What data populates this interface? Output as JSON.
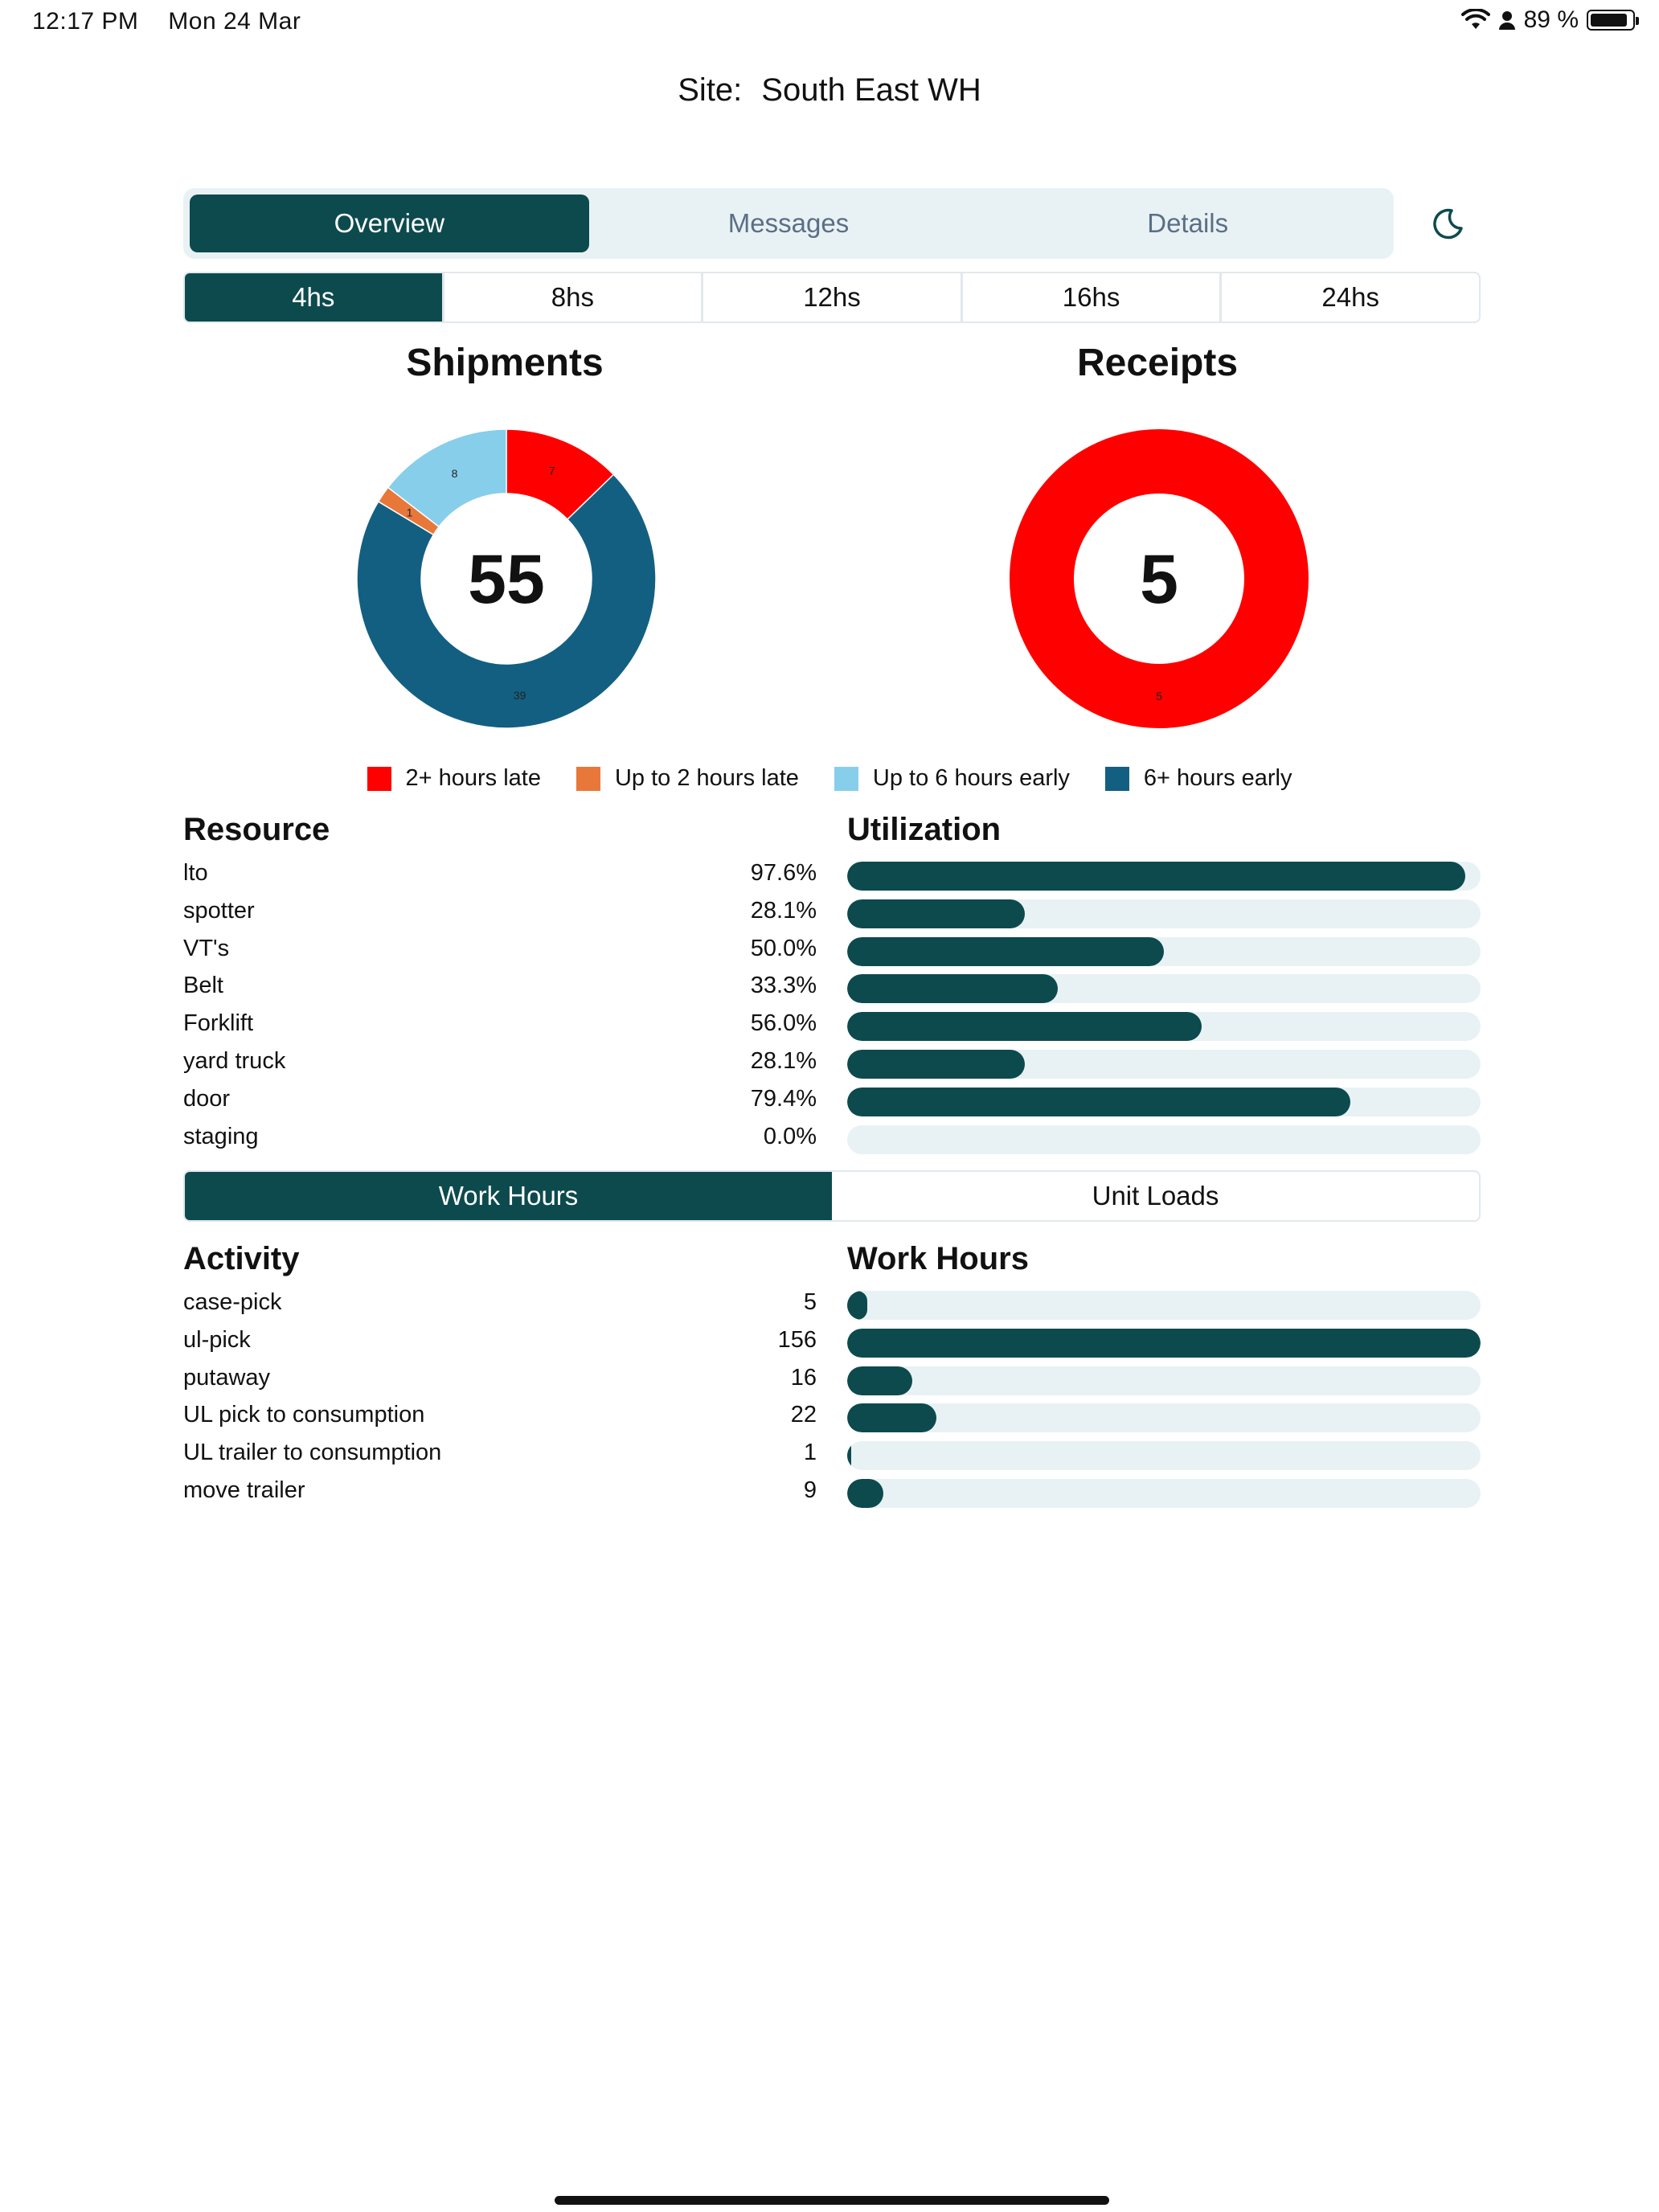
{
  "status_bar": {
    "time": "12:17 PM",
    "date": "Mon 24 Mar",
    "battery": "89 %",
    "battery_level": 0.89
  },
  "header": {
    "site_label": "Site:",
    "site_name": "South East WH"
  },
  "tabs": [
    {
      "label": "Overview",
      "active": true
    },
    {
      "label": "Messages",
      "active": false
    },
    {
      "label": "Details",
      "active": false
    }
  ],
  "theme_toggle_icon": "moon-icon",
  "time_filters": [
    {
      "label": "4hs",
      "active": true
    },
    {
      "label": "8hs",
      "active": false
    },
    {
      "label": "12hs",
      "active": false
    },
    {
      "label": "16hs",
      "active": false
    },
    {
      "label": "24hs",
      "active": false
    }
  ],
  "colors": {
    "primary": "#0d4a4d",
    "track": "#e8f2f4",
    "late_2plus": "#ff0000",
    "late_upto2": "#e8783a",
    "early_upto6": "#87ceeb",
    "early_6plus": "#135f82"
  },
  "chart_data": [
    {
      "type": "pie",
      "title": "Shipments",
      "center_label": "55",
      "series": [
        {
          "name": "2+ hours late",
          "value": 7,
          "color": "#ff0000"
        },
        {
          "name": "6+ hours early",
          "value": 39,
          "color": "#135f82"
        },
        {
          "name": "Up to 2 hours late",
          "value": 1,
          "color": "#e8783a"
        },
        {
          "name": "Up to 6 hours early",
          "value": 8,
          "color": "#87ceeb"
        }
      ]
    },
    {
      "type": "pie",
      "title": "Receipts",
      "center_label": "5",
      "series": [
        {
          "name": "2+ hours late",
          "value": 5,
          "color": "#ff0000"
        }
      ]
    }
  ],
  "legend": [
    {
      "label": "2+ hours late",
      "color": "#ff0000"
    },
    {
      "label": "Up to 2 hours late",
      "color": "#e8783a"
    },
    {
      "label": "Up to 6 hours early",
      "color": "#87ceeb"
    },
    {
      "label": "6+ hours early",
      "color": "#135f82"
    }
  ],
  "resources": {
    "name_header": "Resource",
    "bar_header": "Utilization",
    "rows": [
      {
        "name": "lto",
        "value_label": "97.6%",
        "fraction": 0.976
      },
      {
        "name": "spotter",
        "value_label": "28.1%",
        "fraction": 0.281
      },
      {
        "name": "VT's",
        "value_label": "50.0%",
        "fraction": 0.5
      },
      {
        "name": "Belt",
        "value_label": "33.3%",
        "fraction": 0.333
      },
      {
        "name": "Forklift",
        "value_label": "56.0%",
        "fraction": 0.56
      },
      {
        "name": "yard truck",
        "value_label": "28.1%",
        "fraction": 0.281
      },
      {
        "name": "door",
        "value_label": "79.4%",
        "fraction": 0.794
      },
      {
        "name": "staging",
        "value_label": "0.0%",
        "fraction": 0.0
      }
    ]
  },
  "metric_toggle": [
    {
      "label": "Work Hours",
      "active": true
    },
    {
      "label": "Unit Loads",
      "active": false
    }
  ],
  "activities": {
    "name_header": "Activity",
    "bar_header": "Work Hours",
    "max": 156,
    "rows": [
      {
        "name": "case-pick",
        "value": 5
      },
      {
        "name": "ul-pick",
        "value": 156
      },
      {
        "name": "putaway",
        "value": 16
      },
      {
        "name": "UL pick to consumption",
        "value": 22
      },
      {
        "name": "UL trailer to consumption",
        "value": 1
      },
      {
        "name": "move trailer",
        "value": 9
      }
    ]
  }
}
